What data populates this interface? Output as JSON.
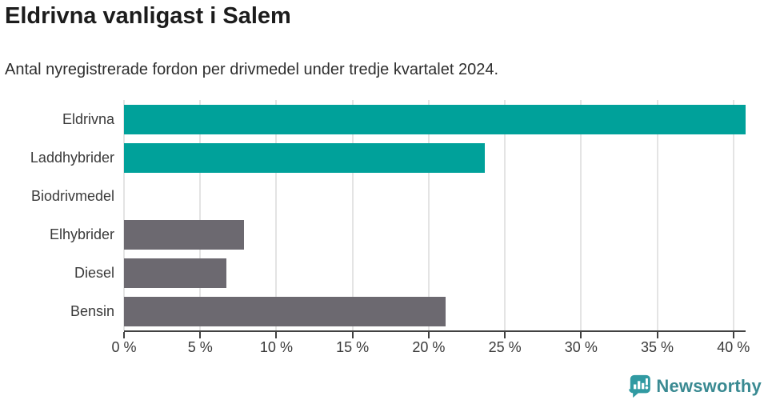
{
  "header": {
    "title": "Eldrivna vanligast i Salem",
    "subtitle": "Antal nyregistrerade fordon per drivmedel under tredje kvartalet 2024."
  },
  "chart_data": {
    "type": "bar",
    "orientation": "horizontal",
    "title": "Eldrivna vanligast i Salem",
    "subtitle": "Antal nyregistrerade fordon per drivmedel under tredje kvartalet 2024.",
    "categories": [
      "Eldrivna",
      "Laddhybrider",
      "Biodrivmedel",
      "Elhybrider",
      "Diesel",
      "Bensin"
    ],
    "values": [
      40.8,
      23.7,
      0,
      7.9,
      6.7,
      21.1
    ],
    "unit": "%",
    "bar_colors": [
      "#00a19a",
      "#00a19a",
      "#6c6970",
      "#6c6970",
      "#6c6970",
      "#6c6970"
    ],
    "highlight_color": "#00a19a",
    "default_color": "#6c6970",
    "xlim": [
      0,
      40.8
    ],
    "x_ticks": [
      0,
      5,
      10,
      15,
      20,
      25,
      30,
      35,
      40
    ],
    "x_tick_labels": [
      "0 %",
      "5 %",
      "10 %",
      "15 %",
      "20 %",
      "25 %",
      "30 %",
      "35 %",
      "40 %"
    ],
    "grid": true,
    "legend": "none",
    "xlabel": "",
    "ylabel": ""
  },
  "footer": {
    "brand": "Newsworthy",
    "brand_color": "#3a8a92",
    "logo_icon": "bar-chart-speech-bubble",
    "logo_color": "#319aa2"
  }
}
